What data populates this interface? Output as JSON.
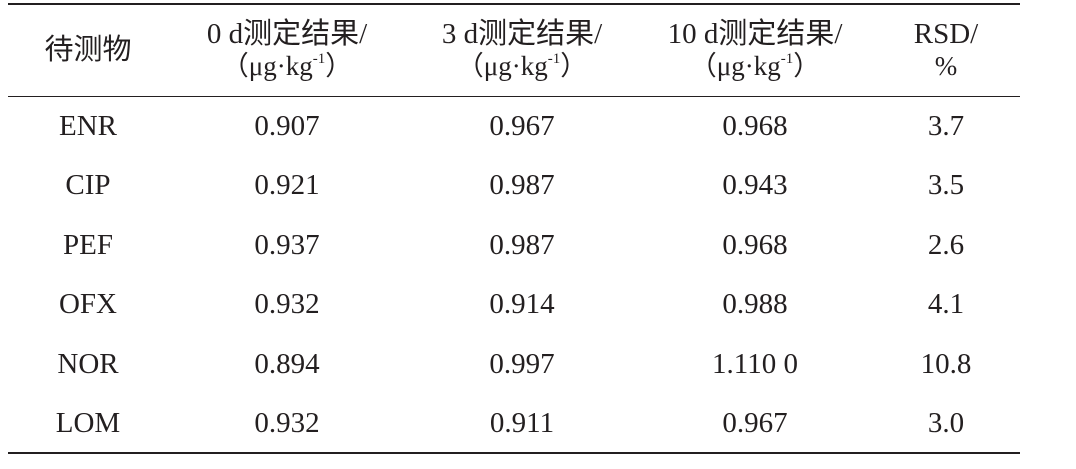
{
  "table": {
    "header": [
      {
        "line1": "待测物"
      },
      {
        "line1": "0 d测定结果/",
        "unit": "（μg·kg",
        "sup": "-1",
        "close": "）"
      },
      {
        "line1": "3 d测定结果/",
        "unit": "（μg·kg",
        "sup": "-1",
        "close": "）"
      },
      {
        "line1": "10 d测定结果/",
        "unit": "（μg·kg",
        "sup": "-1",
        "close": "）"
      },
      {
        "line1": "RSD/",
        "line2": "%"
      }
    ],
    "rows": [
      [
        "ENR",
        "0.907",
        "0.967",
        "0.968",
        "3.7"
      ],
      [
        "CIP",
        "0.921",
        "0.987",
        "0.943",
        "3.5"
      ],
      [
        "PEF",
        "0.937",
        "0.987",
        "0.968",
        "2.6"
      ],
      [
        "OFX",
        "0.932",
        "0.914",
        "0.988",
        "4.1"
      ],
      [
        "NOR",
        "0.894",
        "0.997",
        "1.110 0",
        "10.8"
      ],
      [
        "LOM",
        "0.932",
        "0.911",
        "0.967",
        "3.0"
      ]
    ]
  }
}
